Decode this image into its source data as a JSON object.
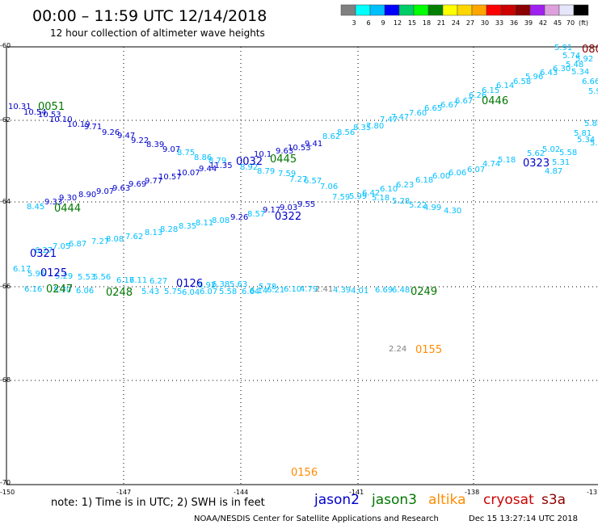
{
  "header": {
    "title": "00:00 – 11:59 UTC 12/14/2018",
    "subtitle": "12 hour collection of altimeter wave heights"
  },
  "legend": {
    "swatches": [
      "#808080",
      "#00ffff",
      "#00bfff",
      "#0000ff",
      "#00cd66",
      "#00ff00",
      "#008000",
      "#ffff00",
      "#ffd700",
      "#ffa500",
      "#ff0000",
      "#cc0000",
      "#8b0000",
      "#a020f0",
      "#dda0dd",
      "#e6e6fa",
      "#000000"
    ],
    "labels": [
      "3",
      "6",
      "9",
      "12",
      "15",
      "18",
      "21",
      "24",
      "27",
      "30",
      "33",
      "36",
      "39",
      "42",
      "45",
      "70",
      "(ft)"
    ]
  },
  "axes": {
    "lat_labels": [
      "-60",
      "-62",
      "-64",
      "-66",
      "-68",
      "-70"
    ],
    "lon_labels": [
      "-150",
      "-147",
      "-144",
      "-141",
      "-138",
      "-13"
    ]
  },
  "footer": {
    "note": "note:  1) Time is in UTC;  2) SWH is in feet",
    "satellites": [
      {
        "name": "jason2",
        "color": "#0000cc"
      },
      {
        "name": "jason3",
        "color": "#007700"
      },
      {
        "name": "altika",
        "color": "#ff8c00"
      },
      {
        "name": "cryosat",
        "color": "#cc0000"
      },
      {
        "name": "s3a",
        "color": "#8b0000"
      }
    ],
    "credit": "NOAA/NESDIS Center for Satellite Applications and Research",
    "generated": "Dec 15 13:27:14 UTC 2018"
  },
  "map_data": {
    "time_labels": [
      {
        "text": "0051",
        "color": "#007700"
      },
      {
        "text": "0444",
        "color": "#007700"
      },
      {
        "text": "0445",
        "color": "#007700"
      },
      {
        "text": "0446",
        "color": "#007700"
      },
      {
        "text": "0321",
        "color": "#0000cc"
      },
      {
        "text": "0322",
        "color": "#0000cc"
      },
      {
        "text": "0323",
        "color": "#0000cc"
      },
      {
        "text": "0032",
        "color": "#0000cc"
      },
      {
        "text": "0125",
        "color": "#0000cc"
      },
      {
        "text": "0126",
        "color": "#0000cc"
      },
      {
        "text": "0247",
        "color": "#007700"
      },
      {
        "text": "0248",
        "color": "#007700"
      },
      {
        "text": "0249",
        "color": "#007700"
      },
      {
        "text": "0155",
        "color": "#ff8c00"
      },
      {
        "text": "0156",
        "color": "#ff8c00"
      },
      {
        "text": "080",
        "color": "#8b0000"
      }
    ],
    "swh_values": [
      {
        "text": "10.31",
        "color": "#0000cc"
      },
      {
        "text": "10.54",
        "color": "#0000cc"
      },
      {
        "text": "10.53",
        "color": "#0000cc"
      },
      {
        "text": "10.10",
        "color": "#0000cc"
      },
      {
        "text": "10.19",
        "color": "#0000cc"
      },
      {
        "text": "9.71",
        "color": "#0000cc"
      },
      {
        "text": "9.26",
        "color": "#0000cc"
      },
      {
        "text": "9.47",
        "color": "#0000cc"
      },
      {
        "text": "9.22",
        "color": "#0000cc"
      },
      {
        "text": "8.39",
        "color": "#0000cc"
      },
      {
        "text": "9.07",
        "color": "#0000cc"
      },
      {
        "text": "8.75",
        "color": "#00bfff"
      },
      {
        "text": "8.86",
        "color": "#00bfff"
      },
      {
        "text": "8.79",
        "color": "#00bfff"
      },
      {
        "text": "11.35",
        "color": "#0000cc"
      },
      {
        "text": "10.1",
        "color": "#0000cc"
      },
      {
        "text": "9.63",
        "color": "#0000cc"
      },
      {
        "text": "10.53",
        "color": "#0000cc"
      },
      {
        "text": "9.41",
        "color": "#0000cc"
      },
      {
        "text": "8.62",
        "color": "#00bfff"
      },
      {
        "text": "8.56",
        "color": "#00bfff"
      },
      {
        "text": "8.35",
        "color": "#00bfff"
      },
      {
        "text": "7.80",
        "color": "#00bfff"
      },
      {
        "text": "7.47",
        "color": "#00bfff"
      },
      {
        "text": "7.47",
        "color": "#00bfff"
      },
      {
        "text": "7.60",
        "color": "#00bfff"
      },
      {
        "text": "6.65",
        "color": "#00bfff"
      },
      {
        "text": "6.67",
        "color": "#00bfff"
      },
      {
        "text": "6.67",
        "color": "#00bfff"
      },
      {
        "text": "6.26",
        "color": "#00bfff"
      },
      {
        "text": "6.15",
        "color": "#00bfff"
      },
      {
        "text": "6.14",
        "color": "#00bfff"
      },
      {
        "text": "6.58",
        "color": "#00bfff"
      },
      {
        "text": "5.96",
        "color": "#00bfff"
      },
      {
        "text": "6.43",
        "color": "#00bfff"
      },
      {
        "text": "6.30",
        "color": "#00bfff"
      },
      {
        "text": "5.48",
        "color": "#00bfff"
      },
      {
        "text": "5.91",
        "color": "#00bfff"
      },
      {
        "text": "5.74",
        "color": "#00bfff"
      },
      {
        "text": "5.92",
        "color": "#00bfff"
      },
      {
        "text": "5.34",
        "color": "#00bfff"
      },
      {
        "text": "6.66",
        "color": "#00bfff"
      },
      {
        "text": "5.9",
        "color": "#00bfff"
      },
      {
        "text": "5.88",
        "color": "#00bfff"
      },
      {
        "text": "5.81",
        "color": "#00bfff"
      },
      {
        "text": "5.34",
        "color": "#00bfff"
      },
      {
        "text": "5.47",
        "color": "#00bfff"
      },
      {
        "text": "5.58",
        "color": "#00bfff"
      },
      {
        "text": "5.02",
        "color": "#00bfff"
      },
      {
        "text": "5.62",
        "color": "#00bfff"
      },
      {
        "text": "5.31",
        "color": "#00bfff"
      },
      {
        "text": "4.87",
        "color": "#00bfff"
      },
      {
        "text": "5.18",
        "color": "#00bfff"
      },
      {
        "text": "4.74",
        "color": "#00bfff"
      },
      {
        "text": "6.07",
        "color": "#00bfff"
      },
      {
        "text": "6.06",
        "color": "#00bfff"
      },
      {
        "text": "6.00",
        "color": "#00bfff"
      },
      {
        "text": "6.18",
        "color": "#00bfff"
      },
      {
        "text": "6.23",
        "color": "#00bfff"
      },
      {
        "text": "6.10",
        "color": "#00bfff"
      },
      {
        "text": "6.42",
        "color": "#00bfff"
      },
      {
        "text": "5.99",
        "color": "#00bfff"
      },
      {
        "text": "5.18",
        "color": "#00bfff"
      },
      {
        "text": "5.28",
        "color": "#00bfff"
      },
      {
        "text": "5.22",
        "color": "#00bfff"
      },
      {
        "text": "4.99",
        "color": "#00bfff"
      },
      {
        "text": "4.30",
        "color": "#00bfff"
      },
      {
        "text": "7.59",
        "color": "#00bfff"
      },
      {
        "text": "7.06",
        "color": "#00bfff"
      },
      {
        "text": "6.57",
        "color": "#00bfff"
      },
      {
        "text": "7.27",
        "color": "#00bfff"
      },
      {
        "text": "7.59",
        "color": "#00bfff"
      },
      {
        "text": "8.79",
        "color": "#00bfff"
      },
      {
        "text": "8.92",
        "color": "#00bfff"
      },
      {
        "text": "9.44",
        "color": "#0000cc"
      },
      {
        "text": "10.07",
        "color": "#0000cc"
      },
      {
        "text": "10.57",
        "color": "#0000cc"
      },
      {
        "text": "9.77",
        "color": "#0000cc"
      },
      {
        "text": "9.69",
        "color": "#0000cc"
      },
      {
        "text": "9.63",
        "color": "#0000cc"
      },
      {
        "text": "9.07",
        "color": "#0000cc"
      },
      {
        "text": "8.90",
        "color": "#0000cc"
      },
      {
        "text": "9.30",
        "color": "#0000cc"
      },
      {
        "text": "9.33",
        "color": "#0000cc"
      },
      {
        "text": "8.45",
        "color": "#00bfff"
      },
      {
        "text": "9.55",
        "color": "#0000cc"
      },
      {
        "text": "9.03",
        "color": "#0000cc"
      },
      {
        "text": "9.17",
        "color": "#0000cc"
      },
      {
        "text": "8.57",
        "color": "#00bfff"
      },
      {
        "text": "9.26",
        "color": "#0000cc"
      },
      {
        "text": "8.08",
        "color": "#00bfff"
      },
      {
        "text": "8.11",
        "color": "#00bfff"
      },
      {
        "text": "8.35",
        "color": "#00bfff"
      },
      {
        "text": "8.28",
        "color": "#00bfff"
      },
      {
        "text": "8.13",
        "color": "#00bfff"
      },
      {
        "text": "7.62",
        "color": "#00bfff"
      },
      {
        "text": "8.08",
        "color": "#00bfff"
      },
      {
        "text": "7.27",
        "color": "#00bfff"
      },
      {
        "text": "6.87",
        "color": "#00bfff"
      },
      {
        "text": "7.05",
        "color": "#00bfff"
      },
      {
        "text": "6.27",
        "color": "#00bfff"
      },
      {
        "text": "6.17",
        "color": "#00bfff"
      },
      {
        "text": "5.96",
        "color": "#00bfff"
      },
      {
        "text": "5.29",
        "color": "#00bfff"
      },
      {
        "text": "5.53",
        "color": "#00bfff"
      },
      {
        "text": "5.56",
        "color": "#00bfff"
      },
      {
        "text": "6.17",
        "color": "#00bfff"
      },
      {
        "text": "6.11",
        "color": "#00bfff"
      },
      {
        "text": "6.27",
        "color": "#00bfff"
      },
      {
        "text": "6.16",
        "color": "#00bfff"
      },
      {
        "text": "5.70",
        "color": "#00bfff"
      },
      {
        "text": "6.06",
        "color": "#00bfff"
      },
      {
        "text": "5.43",
        "color": "#00bfff"
      },
      {
        "text": "5.75",
        "color": "#00bfff"
      },
      {
        "text": "6.04",
        "color": "#00bfff"
      },
      {
        "text": "6.07",
        "color": "#00bfff"
      },
      {
        "text": "5.58",
        "color": "#00bfff"
      },
      {
        "text": "6.64",
        "color": "#00bfff"
      },
      {
        "text": "6.14",
        "color": "#00bfff"
      },
      {
        "text": "6.21",
        "color": "#00bfff"
      },
      {
        "text": "6.10",
        "color": "#00bfff"
      },
      {
        "text": "4.79",
        "color": "#00bfff"
      },
      {
        "text": "4.39",
        "color": "#00bfff"
      },
      {
        "text": "4.01",
        "color": "#00bfff"
      },
      {
        "text": "6.69",
        "color": "#00bfff"
      },
      {
        "text": "6.48",
        "color": "#00bfff"
      },
      {
        "text": "5.92",
        "color": "#00bfff"
      },
      {
        "text": "6.38",
        "color": "#00bfff"
      },
      {
        "text": "5.63",
        "color": "#00bfff"
      },
      {
        "text": "5.78",
        "color": "#00bfff"
      },
      {
        "text": "2.41",
        "color": "#808080"
      },
      {
        "text": "2.24",
        "color": "#808080"
      }
    ]
  }
}
